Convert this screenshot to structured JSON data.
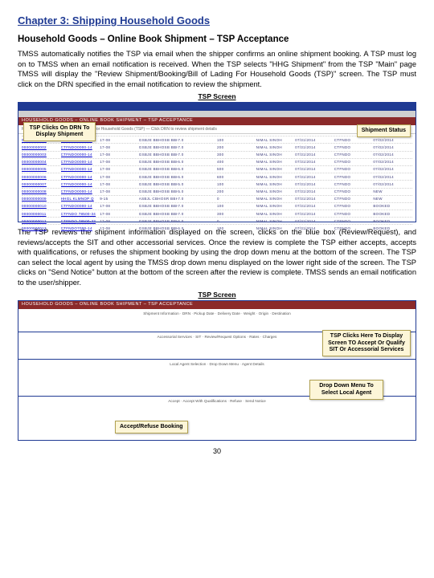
{
  "chapter_title": "Chapter 3:  Shipping Household Goods",
  "section_title": "Household Goods – Online Book Shipment – TSP Acceptance",
  "paragraph1": "TMSS automatically notifies the TSP via email when the shipper confirms an online shipment booking.  A TSP must log on to TMSS when an email notification is received. When the TSP selects \"HHG Shipment\"  from the TSP \"Main\" page TMSS will display the \"Review Shipment/Booking/Bill of Lading For Household Goods (TSP)\" screen.  The TSP must click on the DRN specified in the email notification to review the shipment.",
  "caption1": "TSP Screen",
  "callout_drn": "TSP Clicks On DRN\nTo Display Shipment",
  "callout_status": "Shipment Status",
  "sc1_header": "HOUSEHOLD GOODS – ONLINE BOOK SHIPMENT – TSP ACCEPTANCE",
  "sc1_textline": "Review Shipment/Booking/Bill of Lading For Household Goods (TSP) — Click DRN to review shipment details",
  "sc1_rows": [
    [
      "00000000001",
      "CTFNDO0000-14",
      "17-08",
      "GSBJE BBHOSB BBHONS H BTN 7016",
      "7.0",
      "100",
      "NIMAL SINOH",
      "07/31/2014",
      "CTFNDO",
      "07/02/2014"
    ],
    [
      "00000000002",
      "CTFNDO0000-14",
      "17-08",
      "GSBJE BBHOSB BBHONS H BTN 7016",
      "7.0",
      "200",
      "NIMAL SINOH",
      "07/31/2014",
      "CTFNDO",
      "07/02/2014"
    ],
    [
      "00000000003",
      "CTFNDO0000-14",
      "17-08",
      "GSBJE BBHOSB BBHONS H BTN 7016",
      "7.0",
      "300",
      "NIMAL SINOH",
      "07/31/2014",
      "CTFNDO",
      "07/02/2014"
    ],
    [
      "00000000004",
      "CTFNDO0000-14",
      "17-08",
      "GSBJE BBHOSB BBHONS H BTN 7016",
      "6.0",
      "400",
      "NIMAL SINOH",
      "07/31/2014",
      "CTFNDO",
      "07/02/2014"
    ],
    [
      "00000000005",
      "CTFNDO0000-14",
      "17-08",
      "GSBJE BBHOSB BBHONS H BTN 7016",
      "6.0",
      "500",
      "NIMAL SINOH",
      "07/31/2014",
      "CTFNDO",
      "07/02/2014"
    ],
    [
      "00000000006",
      "CTFNDO0000-14",
      "17-08",
      "GSBJE BBHOSB BBHONS H BTN 7016",
      "6.0",
      "600",
      "NIMAL SINOH",
      "07/31/2014",
      "CTFNDO",
      "07/02/2014"
    ],
    [
      "00000000007",
      "CTFNDO0000-14",
      "17-08",
      "GSBJE BBHOSB BBHONS H BTN 7016",
      "5.0",
      "100",
      "NIMAL SINOH",
      "07/31/2014",
      "CTFNDO",
      "07/02/2014"
    ],
    [
      "00000000008",
      "CTFNDO0000-14",
      "17-08",
      "GSBJE BBHOSB BBHONS H BTN 7016",
      "5.0",
      "200",
      "NIMAL SINOH",
      "07/31/2014",
      "CTFNDO",
      "NEW"
    ],
    [
      "00000000009",
      "HHGL KLMNOP Q",
      "9-15",
      "ASBJL CBHOSR BBHONS J BTN 7016",
      "7.0",
      "0",
      "NIMAL SINOH",
      "07/31/2014",
      "CTFNDO",
      "NEW"
    ],
    [
      "00000000010",
      "CTFNDO0000-14",
      "17-08",
      "GSBJE BBHOSB BBHONS H BTN 7016",
      "7.0",
      "100",
      "NIMAL SINOH",
      "07/31/2014",
      "CTFNDO",
      "BOOKED"
    ],
    [
      "00000000011",
      "CTFNDO 78500-34",
      "17-08",
      "GSBJE BBHOSB BBHONS H BTN 7016",
      "7.0",
      "300",
      "NIMAL SINOH",
      "07/31/2014",
      "CTFNDO",
      "BOOKED"
    ],
    [
      "00000000012",
      "CTFNDO 78500-33",
      "17-08",
      "GSBJE BBHOSB BBHONS H BTN 7016",
      "6.0",
      "0",
      "NIMAL SINOH",
      "07/31/2014",
      "CTFNDO",
      "BOOKED"
    ],
    [
      "00000000013",
      "CTFNDO7000-14",
      "17-08",
      "GSBJE BBHOSB BBHONS H BTN 7016",
      "6.0",
      "100",
      "NIMAL SINOH",
      "07/31/2014",
      "CTFNDO",
      "BOOKED"
    ]
  ],
  "paragraph2": "The TSP reviews the shipment information displayed on the screen, clicks on the blue box (Review/Request), and reviews/accepts the SIT and other accessorial services.  Once the review is complete the TSP either  accepts, accepts with qualifications, or refuses the shipment booking by using the drop down menu at the bottom of the screen.  The TSP can select the local agent by using the TMSS drop down menu displayed on the lower right side of the screen.  The TSP clicks on \"Send Notice\" button at the bottom of the screen after the review is complete.  TMSS sends an email notification to the user/shipper.",
  "caption2": "TSP Screen",
  "sc2_header": "HOUSEHOLD GOODS – ONLINE BOOK SHIPMENT – TSP ACCEPTANCE",
  "sc2_block1": "Shipment Information · DRN · Pickup Date · Delivery Date · Weight · Origin · Destination",
  "sc2_block2": "Accessorial Services · SIT · Review/Request Options · Rates · Charges",
  "sc2_block3": "Local Agent Selection · Drop Down Menu · Agent Details",
  "sc2_block4": "Accept · Accept With Qualifications · Refuse · Send Notice",
  "callout_display": "TSP Clicks Here To Display\nScreen TO Accept Or Qualify\nSIT Or Accessorial Services",
  "callout_dropdown": "Drop Down Menu To\nSelect Local Agent",
  "callout_accept": "Accept/Refuse Booking",
  "page_number": "30",
  "colors": {
    "chapter": "#1f3a93",
    "callout_bg": "#fdf6d8",
    "callout_border": "#b0a050",
    "header_red": "#8b2a2a"
  }
}
